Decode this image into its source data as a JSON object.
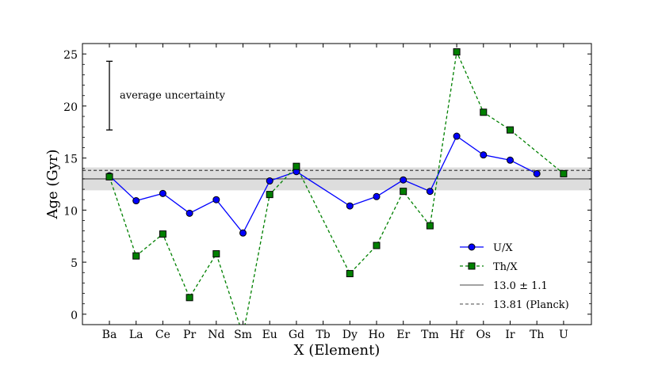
{
  "chart_data": {
    "type": "line",
    "xlabel": "X (Element)",
    "ylabel": "Age (Gyr)",
    "categories": [
      "Ba",
      "La",
      "Ce",
      "Pr",
      "Nd",
      "Sm",
      "Eu",
      "Gd",
      "Tb",
      "Dy",
      "Ho",
      "Er",
      "Tm",
      "Hf",
      "Os",
      "Ir",
      "Th",
      "U"
    ],
    "ylim": [
      -1,
      26
    ],
    "yticks": [
      0,
      5,
      10,
      15,
      20,
      25
    ],
    "series": [
      {
        "name": "U/X",
        "color": "#0000ff",
        "marker": "circle",
        "linestyle": "solid",
        "values": [
          13.3,
          10.9,
          11.6,
          9.7,
          11.0,
          7.8,
          12.8,
          13.7,
          null,
          10.4,
          11.3,
          12.9,
          11.8,
          17.1,
          15.3,
          14.8,
          13.5,
          null
        ]
      },
      {
        "name": "Th/X",
        "color": "#008000",
        "marker": "square",
        "linestyle": "dashed",
        "values": [
          13.2,
          5.6,
          7.7,
          1.6,
          5.8,
          -2.0,
          11.5,
          14.2,
          null,
          3.9,
          6.6,
          11.8,
          8.5,
          25.2,
          19.4,
          17.7,
          null,
          13.5
        ]
      }
    ],
    "reference_lines": [
      {
        "label": "13.0 ± 1.1",
        "value": 13.0,
        "band": [
          11.9,
          14.1
        ],
        "linestyle": "solid",
        "color": "#444444"
      },
      {
        "label": "13.81 (Planck)",
        "value": 13.81,
        "linestyle": "dashed",
        "color": "#444444"
      }
    ],
    "annotation": {
      "text": "average uncertainty",
      "x_category": "Ba",
      "y_range": [
        17.7,
        24.3
      ]
    },
    "legend_position": "lower-right",
    "grid": false
  }
}
